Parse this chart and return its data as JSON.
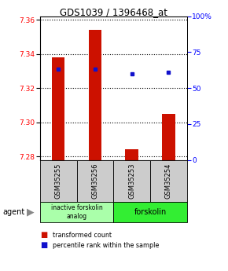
{
  "title": "GDS1039 / 1396468_at",
  "samples": [
    "GSM35255",
    "GSM35256",
    "GSM35253",
    "GSM35254"
  ],
  "bar_values": [
    7.338,
    7.354,
    7.284,
    7.305
  ],
  "bar_base": 7.278,
  "percentile_values": [
    63,
    63,
    60,
    61
  ],
  "ylim": [
    7.278,
    7.362
  ],
  "y_ticks": [
    7.28,
    7.3,
    7.32,
    7.34,
    7.36
  ],
  "right_yticks": [
    0,
    25,
    50,
    75,
    100
  ],
  "right_ylabels": [
    "0",
    "25",
    "50",
    "75",
    "100%"
  ],
  "bar_color": "#cc1100",
  "dot_color": "#1111cc",
  "group1_label": "inactive forskolin\nanalog",
  "group2_label": "forskolin",
  "group1_color": "#aaffaa",
  "group2_color": "#33ee33",
  "sample_bg_color": "#cccccc",
  "legend_red_label": "transformed count",
  "legend_blue_label": "percentile rank within the sample",
  "agent_label": "agent",
  "bar_width": 0.35
}
